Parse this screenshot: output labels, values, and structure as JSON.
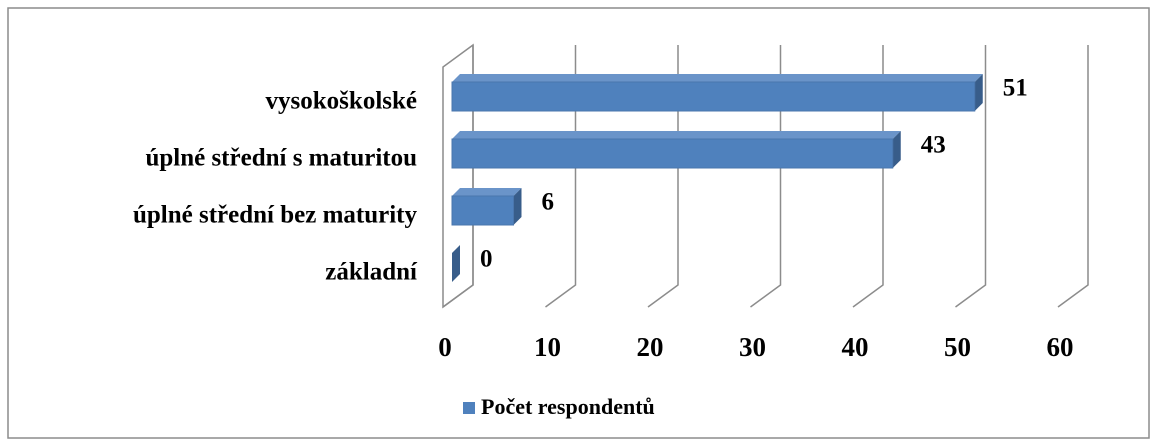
{
  "chart_data": {
    "type": "bar",
    "orientation": "horizontal",
    "categories": [
      "vysokoškolské",
      "úplné střední s maturitou",
      "úplné střední bez maturity",
      "základní"
    ],
    "series": [
      {
        "name": "Počet respondentů",
        "color": "#4f81bd",
        "values": [
          51,
          43,
          6,
          0
        ]
      }
    ],
    "xlim": [
      0,
      60
    ],
    "xticks": [
      0,
      10,
      20,
      30,
      40,
      50,
      60
    ],
    "grid": true,
    "legend": "bottom"
  }
}
